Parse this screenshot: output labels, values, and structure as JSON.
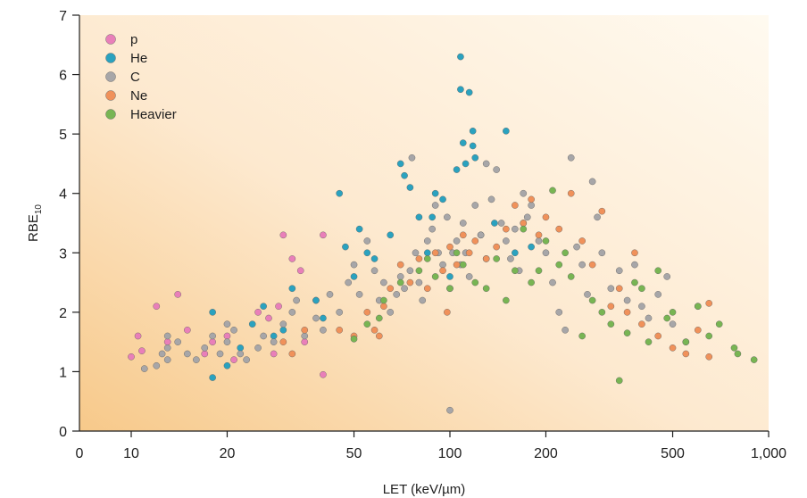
{
  "chart_data": {
    "type": "scatter",
    "xlabel": "LET (keV/µm)",
    "ylabel_main": "RBE",
    "ylabel_sub": "10",
    "x_scale": "log",
    "x_ticks": [
      {
        "value": 10,
        "label": "10"
      },
      {
        "value": 20,
        "label": "20"
      },
      {
        "value": 50,
        "label": "50"
      },
      {
        "value": 100,
        "label": "100"
      },
      {
        "value": 200,
        "label": "200"
      },
      {
        "value": 500,
        "label": "500"
      },
      {
        "value": 1000,
        "label": "1,000"
      }
    ],
    "x_origin_label": "0",
    "xlim": [
      7,
      1000
    ],
    "ylim": [
      0,
      7
    ],
    "y_ticks": [
      0,
      1,
      2,
      3,
      4,
      5,
      6,
      7
    ],
    "grid": false,
    "legend_position": "top-left",
    "background": "warm gradient, orange at lower-left fading to cream at upper-right",
    "series": [
      {
        "name": "p",
        "color": "#e97fb9",
        "points": [
          [
            10,
            1.25
          ],
          [
            10.5,
            1.6
          ],
          [
            10.8,
            1.35
          ],
          [
            12,
            2.1
          ],
          [
            14,
            2.3
          ],
          [
            13,
            1.5
          ],
          [
            15,
            1.7
          ],
          [
            17,
            1.3
          ],
          [
            18,
            1.5
          ],
          [
            20,
            1.6
          ],
          [
            21,
            1.2
          ],
          [
            25,
            2.0
          ],
          [
            27,
            1.9
          ],
          [
            29,
            2.1
          ],
          [
            30,
            3.3
          ],
          [
            32,
            2.9
          ],
          [
            34,
            2.7
          ],
          [
            38,
            2.2
          ],
          [
            40,
            3.3
          ],
          [
            40,
            0.95
          ],
          [
            35,
            1.5
          ],
          [
            28,
            1.3
          ]
        ]
      },
      {
        "name": "He",
        "color": "#2aa2bf",
        "points": [
          [
            18,
            2.0
          ],
          [
            18,
            0.9
          ],
          [
            20,
            1.1
          ],
          [
            22,
            1.4
          ],
          [
            24,
            1.8
          ],
          [
            26,
            2.1
          ],
          [
            28,
            1.6
          ],
          [
            30,
            1.7
          ],
          [
            32,
            2.4
          ],
          [
            38,
            2.2
          ],
          [
            40,
            1.9
          ],
          [
            45,
            4.0
          ],
          [
            47,
            3.1
          ],
          [
            50,
            2.6
          ],
          [
            52,
            3.4
          ],
          [
            55,
            3.0
          ],
          [
            58,
            2.9
          ],
          [
            65,
            3.3
          ],
          [
            70,
            4.5
          ],
          [
            72,
            4.3
          ],
          [
            75,
            4.1
          ],
          [
            80,
            3.6
          ],
          [
            85,
            3.0
          ],
          [
            88,
            3.6
          ],
          [
            90,
            4.0
          ],
          [
            95,
            3.9
          ],
          [
            100,
            2.6
          ],
          [
            105,
            4.4
          ],
          [
            108,
            6.3
          ],
          [
            108,
            5.75
          ],
          [
            115,
            5.7
          ],
          [
            118,
            4.8
          ],
          [
            118,
            5.05
          ],
          [
            120,
            4.6
          ],
          [
            125,
            3.3
          ],
          [
            130,
            2.9
          ],
          [
            138,
            3.5
          ],
          [
            150,
            5.05
          ],
          [
            160,
            3.0
          ],
          [
            170,
            3.5
          ],
          [
            180,
            3.1
          ],
          [
            110,
            4.85
          ],
          [
            112,
            4.5
          ]
        ]
      },
      {
        "name": "C",
        "color": "#a7a6a8",
        "points": [
          [
            11,
            1.05
          ],
          [
            12,
            1.1
          ],
          [
            12.5,
            1.3
          ],
          [
            13,
            1.4
          ],
          [
            13,
            1.2
          ],
          [
            13,
            1.6
          ],
          [
            14,
            1.5
          ],
          [
            15,
            1.3
          ],
          [
            16,
            1.2
          ],
          [
            17,
            1.4
          ],
          [
            18,
            1.6
          ],
          [
            19,
            1.3
          ],
          [
            20,
            1.5
          ],
          [
            20,
            1.8
          ],
          [
            21,
            1.7
          ],
          [
            22,
            1.3
          ],
          [
            23,
            1.2
          ],
          [
            25,
            1.4
          ],
          [
            26,
            1.6
          ],
          [
            28,
            1.5
          ],
          [
            30,
            1.8
          ],
          [
            32,
            2.0
          ],
          [
            33,
            2.2
          ],
          [
            35,
            1.6
          ],
          [
            38,
            1.9
          ],
          [
            40,
            1.7
          ],
          [
            42,
            2.3
          ],
          [
            45,
            2.0
          ],
          [
            48,
            2.5
          ],
          [
            50,
            2.8
          ],
          [
            52,
            2.3
          ],
          [
            55,
            3.2
          ],
          [
            58,
            2.7
          ],
          [
            60,
            2.2
          ],
          [
            62,
            2.5
          ],
          [
            65,
            2.0
          ],
          [
            68,
            2.3
          ],
          [
            70,
            2.6
          ],
          [
            72,
            2.4
          ],
          [
            75,
            2.7
          ],
          [
            76,
            4.6
          ],
          [
            78,
            3.0
          ],
          [
            80,
            2.5
          ],
          [
            82,
            2.2
          ],
          [
            85,
            3.2
          ],
          [
            88,
            3.4
          ],
          [
            90,
            3.8
          ],
          [
            92,
            3.0
          ],
          [
            95,
            2.8
          ],
          [
            98,
            3.6
          ],
          [
            100,
            0.35
          ],
          [
            100,
            2.4
          ],
          [
            102,
            3.0
          ],
          [
            105,
            3.2
          ],
          [
            108,
            2.8
          ],
          [
            110,
            3.5
          ],
          [
            112,
            3.0
          ],
          [
            115,
            2.6
          ],
          [
            120,
            3.8
          ],
          [
            125,
            3.3
          ],
          [
            130,
            4.5
          ],
          [
            135,
            3.9
          ],
          [
            140,
            4.4
          ],
          [
            145,
            3.5
          ],
          [
            150,
            3.2
          ],
          [
            155,
            2.9
          ],
          [
            160,
            3.4
          ],
          [
            165,
            2.7
          ],
          [
            170,
            4.0
          ],
          [
            175,
            3.6
          ],
          [
            180,
            3.8
          ],
          [
            190,
            3.2
          ],
          [
            200,
            3.0
          ],
          [
            210,
            2.5
          ],
          [
            220,
            2.0
          ],
          [
            230,
            1.7
          ],
          [
            240,
            4.6
          ],
          [
            250,
            3.1
          ],
          [
            260,
            2.8
          ],
          [
            270,
            2.3
          ],
          [
            280,
            4.2
          ],
          [
            290,
            3.6
          ],
          [
            300,
            3.0
          ],
          [
            320,
            2.4
          ],
          [
            340,
            2.7
          ],
          [
            360,
            2.2
          ],
          [
            380,
            2.8
          ],
          [
            400,
            2.1
          ],
          [
            420,
            1.9
          ],
          [
            450,
            2.3
          ],
          [
            480,
            2.6
          ],
          [
            500,
            1.8
          ],
          [
            550,
            1.5
          ],
          [
            600,
            2.1
          ]
        ]
      },
      {
        "name": "Ne",
        "color": "#f0915a",
        "points": [
          [
            30,
            1.5
          ],
          [
            32,
            1.3
          ],
          [
            35,
            1.7
          ],
          [
            45,
            1.7
          ],
          [
            50,
            1.6
          ],
          [
            55,
            2.0
          ],
          [
            58,
            1.7
          ],
          [
            60,
            1.6
          ],
          [
            62,
            2.1
          ],
          [
            65,
            2.4
          ],
          [
            70,
            2.8
          ],
          [
            75,
            2.5
          ],
          [
            80,
            2.9
          ],
          [
            85,
            2.4
          ],
          [
            90,
            3.0
          ],
          [
            95,
            2.7
          ],
          [
            98,
            2.0
          ],
          [
            100,
            3.1
          ],
          [
            105,
            2.8
          ],
          [
            110,
            3.3
          ],
          [
            115,
            3.0
          ],
          [
            120,
            3.2
          ],
          [
            130,
            2.9
          ],
          [
            140,
            3.1
          ],
          [
            150,
            3.4
          ],
          [
            160,
            3.8
          ],
          [
            170,
            3.5
          ],
          [
            180,
            3.9
          ],
          [
            190,
            3.3
          ],
          [
            200,
            3.6
          ],
          [
            220,
            3.4
          ],
          [
            240,
            4.0
          ],
          [
            260,
            3.2
          ],
          [
            280,
            2.8
          ],
          [
            300,
            3.7
          ],
          [
            320,
            2.1
          ],
          [
            340,
            2.4
          ],
          [
            360,
            2.0
          ],
          [
            380,
            3.0
          ],
          [
            400,
            1.8
          ],
          [
            450,
            1.6
          ],
          [
            500,
            1.4
          ],
          [
            550,
            1.3
          ],
          [
            600,
            1.7
          ],
          [
            650,
            1.25
          ],
          [
            650,
            2.15
          ]
        ]
      },
      {
        "name": "Heavier",
        "color": "#78b553",
        "points": [
          [
            50,
            1.55
          ],
          [
            55,
            1.8
          ],
          [
            60,
            1.9
          ],
          [
            62,
            2.2
          ],
          [
            70,
            2.5
          ],
          [
            80,
            2.7
          ],
          [
            85,
            2.9
          ],
          [
            90,
            2.6
          ],
          [
            100,
            2.4
          ],
          [
            105,
            3.0
          ],
          [
            110,
            2.8
          ],
          [
            120,
            2.5
          ],
          [
            130,
            2.4
          ],
          [
            140,
            2.9
          ],
          [
            150,
            2.2
          ],
          [
            160,
            2.7
          ],
          [
            170,
            3.4
          ],
          [
            180,
            2.5
          ],
          [
            190,
            2.7
          ],
          [
            200,
            3.2
          ],
          [
            210,
            4.05
          ],
          [
            220,
            2.8
          ],
          [
            230,
            3.0
          ],
          [
            240,
            2.6
          ],
          [
            260,
            1.6
          ],
          [
            280,
            2.2
          ],
          [
            300,
            2.0
          ],
          [
            320,
            1.8
          ],
          [
            340,
            0.85
          ],
          [
            360,
            1.65
          ],
          [
            380,
            2.5
          ],
          [
            400,
            2.4
          ],
          [
            420,
            1.5
          ],
          [
            450,
            2.7
          ],
          [
            480,
            1.9
          ],
          [
            500,
            2.0
          ],
          [
            550,
            1.5
          ],
          [
            600,
            2.1
          ],
          [
            650,
            1.6
          ],
          [
            700,
            1.8
          ],
          [
            780,
            1.4
          ],
          [
            800,
            1.3
          ],
          [
            900,
            1.2
          ]
        ]
      }
    ]
  }
}
